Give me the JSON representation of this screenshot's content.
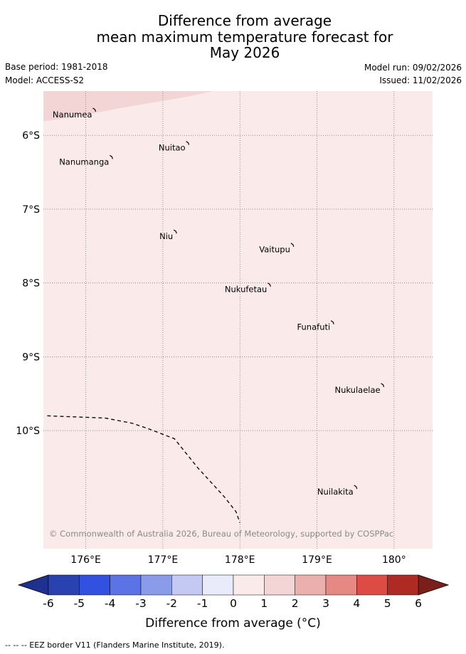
{
  "header": {
    "title_lines": [
      "Difference from average",
      "mean maximum temperature forecast for",
      "May 2026"
    ],
    "base_period": "Base period: 1981-2018",
    "model": "Model: ACCESS-S2",
    "model_run": "Model run: 09/02/2026",
    "issued": "Issued: 11/02/2026"
  },
  "map": {
    "lon_range": [
      175.45,
      180.5
    ],
    "lat_range": [
      -11.6,
      -5.4
    ],
    "lon_ticks": [
      {
        "value": 176,
        "label": "176°E"
      },
      {
        "value": 177,
        "label": "177°E"
      },
      {
        "value": 178,
        "label": "178°E"
      },
      {
        "value": 179,
        "label": "179°E"
      },
      {
        "value": 180,
        "label": "180°"
      }
    ],
    "lat_ticks": [
      {
        "value": -6,
        "label": "6°S"
      },
      {
        "value": -7,
        "label": "7°S"
      },
      {
        "value": -8,
        "label": "8°S"
      },
      {
        "value": -9,
        "label": "9°S"
      },
      {
        "value": -10,
        "label": "10°S"
      }
    ],
    "fill_regions": [
      {
        "name": "region-0-to-1",
        "range": [
          0,
          1
        ],
        "color": "#fbeaea"
      },
      {
        "name": "region-1-to-2",
        "range": [
          1,
          2
        ],
        "color": "#f4d5d5",
        "boundary": [
          [
            175.45,
            -5.81
          ],
          [
            175.8,
            -5.76
          ],
          [
            176.5,
            -5.62
          ],
          [
            177.3,
            -5.48
          ],
          [
            178.1,
            -5.3
          ],
          [
            178.5,
            -5.18
          ],
          [
            178.6,
            -5.12
          ]
        ]
      }
    ],
    "islands": [
      {
        "name": "Nanumea",
        "lon": 176.11,
        "lat": -5.65
      },
      {
        "name": "Nuitao",
        "lon": 177.32,
        "lat": -6.1
      },
      {
        "name": "Nanumanga",
        "lon": 176.33,
        "lat": -6.29
      },
      {
        "name": "Niu",
        "lon": 177.16,
        "lat": -7.3
      },
      {
        "name": "Vaitupu",
        "lon": 178.68,
        "lat": -7.48
      },
      {
        "name": "Nukufetau",
        "lon": 178.38,
        "lat": -8.02
      },
      {
        "name": "Funafuti",
        "lon": 179.2,
        "lat": -8.53
      },
      {
        "name": "Nukulaelae",
        "lon": 179.85,
        "lat": -9.38
      },
      {
        "name": "Nuilakita",
        "lon": 179.5,
        "lat": -10.76
      }
    ],
    "eez_border": [
      [
        175.5,
        -9.8
      ],
      [
        176.25,
        -9.83
      ],
      [
        176.6,
        -9.9
      ],
      [
        176.8,
        -9.97
      ],
      [
        177.15,
        -10.11
      ],
      [
        177.45,
        -10.5
      ],
      [
        177.8,
        -10.9
      ],
      [
        177.95,
        -11.1
      ],
      [
        178.0,
        -11.25
      ]
    ],
    "copyright": "© Commonwealth of Australia 2026, Bureau of Meteorology, supported by COSPPac"
  },
  "colorbar": {
    "ticks": [
      "-6",
      "-5",
      "-4",
      "-3",
      "-2",
      "-1",
      "0",
      "1",
      "2",
      "3",
      "4",
      "5",
      "6"
    ],
    "colors": [
      "#2a41b0",
      "#3351e0",
      "#5b73e4",
      "#8a9bea",
      "#c3c9f3",
      "#e9ebfa",
      "#fbeaea",
      "#f4d5d5",
      "#ecb0ac",
      "#e68883",
      "#dc4c44",
      "#b02a24"
    ],
    "under_color": "#1e3090",
    "over_color": "#7a1f1a",
    "label": "Difference from average (°C)"
  },
  "footnote": "-- -- -- EEZ border V11 (Flanders Marine Institute, 2019)."
}
